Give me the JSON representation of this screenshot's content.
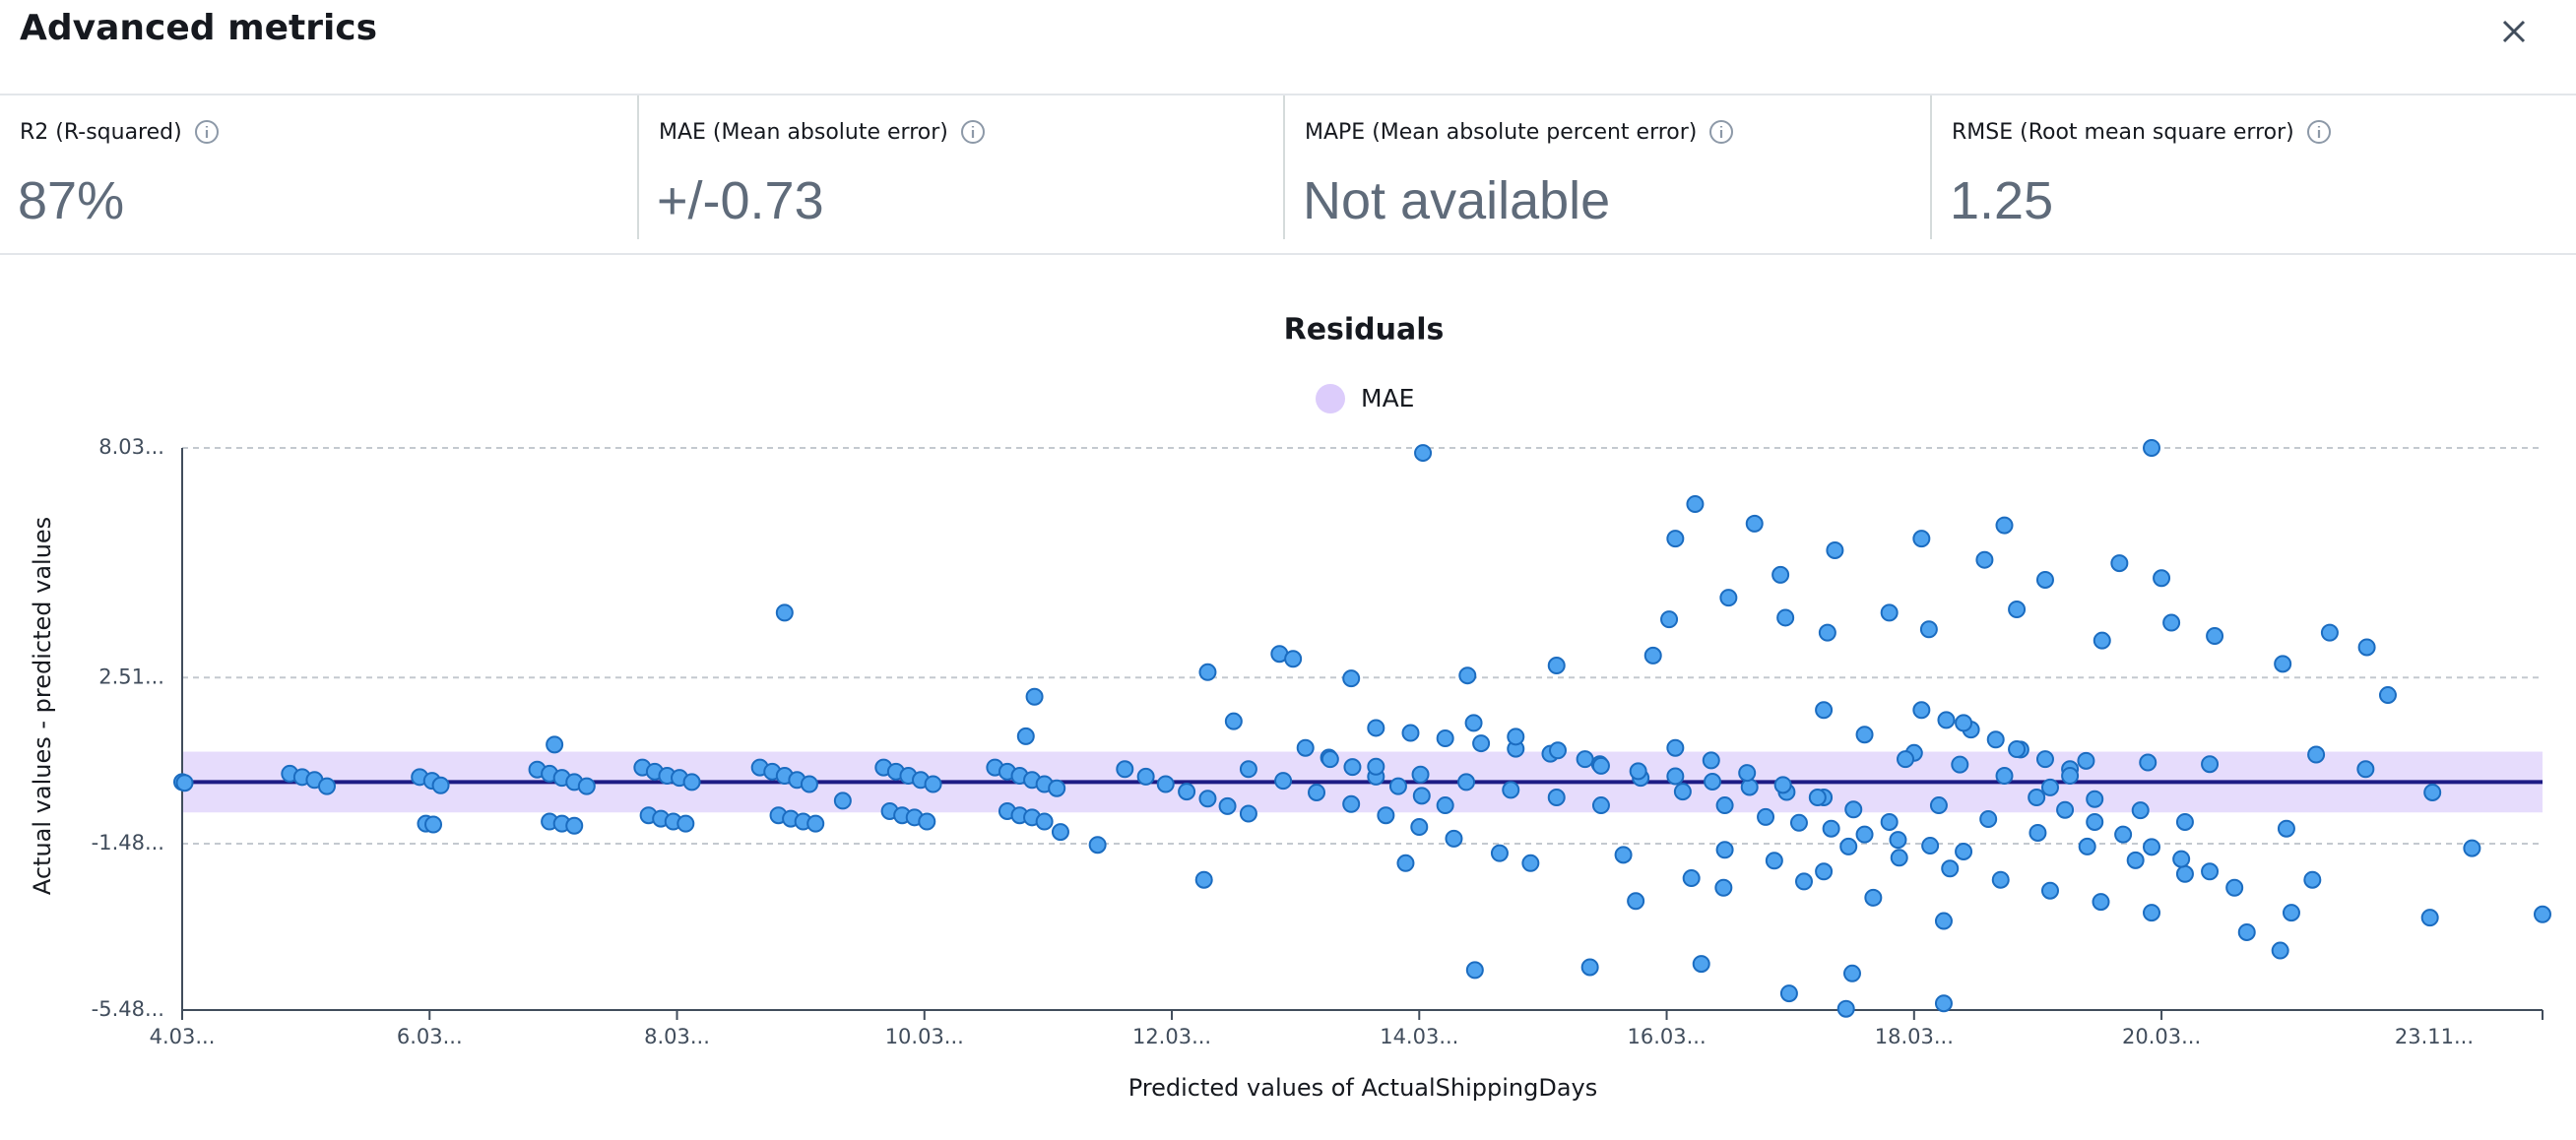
{
  "header": {
    "title": "Advanced metrics"
  },
  "metrics": [
    {
      "label": "R2 (R-squared)",
      "value": "87%"
    },
    {
      "label": "MAE (Mean absolute error)",
      "value": "+/-0.73"
    },
    {
      "label": "MAPE (Mean absolute percent error)",
      "value": "Not available"
    },
    {
      "label": "RMSE (Root mean square error)",
      "value": "1.25"
    }
  ],
  "chart_data": {
    "type": "scatter",
    "title": "Residuals",
    "x_label": "Predicted values of ActualShippingDays",
    "y_label": "Actual values - predicted values",
    "band": {
      "name": "MAE",
      "color": "#e6dcfc",
      "legend_color": "#dcccfb",
      "range": [
        -0.73,
        0.73
      ]
    },
    "zero_line": {
      "value": 0,
      "color": "#1d1b84"
    },
    "color": "#4fa3ef",
    "edge_color": "#1b6cc0",
    "xlim": [
      4.03,
      23.11
    ],
    "ylim": [
      -5.48,
      8.03
    ],
    "grid": true,
    "xticks": [
      {
        "value": 4.03,
        "label": "4.03..."
      },
      {
        "value": 6.03,
        "label": "6.03..."
      },
      {
        "value": 8.03,
        "label": "8.03..."
      },
      {
        "value": 10.03,
        "label": "10.03..."
      },
      {
        "value": 12.03,
        "label": "12.03..."
      },
      {
        "value": 14.03,
        "label": "14.03..."
      },
      {
        "value": 16.03,
        "label": "16.03..."
      },
      {
        "value": 18.03,
        "label": "18.03..."
      },
      {
        "value": 20.03,
        "label": "20.03..."
      },
      {
        "value": 23.11,
        "label": "23.11..."
      }
    ],
    "yticks": [
      {
        "value": 8.03,
        "label": "8.03..."
      },
      {
        "value": 2.51,
        "label": "2.51..."
      },
      {
        "value": -1.48,
        "label": "-1.48..."
      },
      {
        "value": -5.48,
        "label": "-5.48..."
      }
    ],
    "x": [
      4.03,
      4.05,
      4.9,
      5.0,
      5.1,
      5.2,
      5.95,
      6.05,
      6.12,
      6.0,
      6.06,
      6.9,
      7.0,
      7.1,
      7.2,
      7.3,
      7.0,
      7.1,
      7.2,
      7.04,
      7.75,
      7.85,
      7.95,
      8.05,
      8.15,
      7.8,
      7.9,
      8.0,
      8.1,
      8.9,
      8.7,
      8.8,
      8.9,
      9.0,
      9.1,
      8.85,
      8.95,
      9.05,
      9.15,
      9.37,
      9.7,
      9.8,
      9.9,
      10.0,
      10.1,
      9.75,
      9.85,
      9.95,
      10.05,
      10.6,
      10.7,
      10.8,
      10.9,
      11.0,
      11.1,
      10.7,
      10.8,
      10.9,
      11.0,
      11.65,
      11.82,
      11.98,
      12.15,
      12.32,
      12.48,
      12.65,
      12.65,
      12.93,
      13.2,
      13.48,
      13.76,
      14.03,
      14.31,
      13.11,
      13.3,
      13.49,
      13.68,
      13.86,
      14.05,
      14.24,
      13.31,
      13.68,
      14.04,
      14.41,
      14.77,
      15.14,
      15.5,
      13.68,
      13.96,
      14.24,
      14.53,
      14.81,
      15.09,
      15.37,
      14.47,
      14.81,
      15.15,
      15.49,
      15.82,
      16.16,
      16.5,
      15.5,
      15.8,
      16.1,
      16.4,
      16.7,
      17.0,
      17.3,
      16.1,
      16.39,
      16.68,
      16.97,
      17.25,
      17.54,
      17.83,
      16.83,
      17.1,
      17.36,
      17.63,
      17.9,
      18.16,
      18.43,
      17.5,
      17.91,
      18.32,
      18.73,
      19.13,
      19.54,
      19.95,
      18.03,
      18.4,
      18.76,
      19.13,
      19.49,
      19.86,
      20.22,
      18.23,
      18.63,
      19.03,
      19.43,
      19.82,
      20.22,
      20.62,
      19.02,
      19.25,
      19.49,
      19.72,
      19.95,
      20.19,
      20.42,
      18.09,
      18.29,
      18.49,
      18.69,
      18.89,
      19.09,
      19.29,
      19.42,
      19.92,
      20.42,
      16.5,
      16.9,
      17.3,
      17.3,
      17.63,
      17.96,
      18.43,
      18.86,
      19.29,
      14.06,
      19.95,
      16.26,
      16.1,
      16.74,
      17.39,
      16.95,
      16.53,
      16.05,
      16.99,
      18.09,
      18.76,
      18.6,
      19.09,
      19.69,
      20.03,
      17.83,
      18.86,
      17.33,
      18.15,
      19.55,
      20.11,
      20.46,
      21.01,
      21.39,
      21.69,
      21.86,
      15.92,
      15.14,
      14.42,
      13.48,
      12.9,
      13.01,
      12.32,
      10.92,
      10.85,
      12.53,
      21.28,
      21.68,
      22.22,
      22.54,
      22.2,
      23.11,
      21.04,
      21.25,
      21.08,
      20.99,
      20.72,
      18.27,
      17.7,
      17.14,
      16.49,
      16.23,
      15.78,
      15.68,
      14.68,
      14.93,
      13.92,
      12.29,
      11.43,
      11.13,
      14.48,
      15.41,
      16.31,
      17.02,
      17.48,
      17.53,
      18.27
    ],
    "y": [
      0,
      -0.02,
      0.2,
      0.12,
      0.05,
      -0.1,
      0.12,
      0.03,
      -0.08,
      -1.0,
      -1.02,
      0.3,
      0.2,
      0.1,
      0.0,
      -0.1,
      -0.95,
      -1.0,
      -1.05,
      0.9,
      0.35,
      0.25,
      0.15,
      0.1,
      0.0,
      -0.8,
      -0.88,
      -0.95,
      -1.0,
      4.07,
      0.35,
      0.25,
      0.15,
      0.05,
      -0.05,
      -0.8,
      -0.88,
      -0.95,
      -1.0,
      -0.45,
      0.35,
      0.25,
      0.15,
      0.05,
      -0.05,
      -0.7,
      -0.8,
      -0.85,
      -0.95,
      0.35,
      0.25,
      0.15,
      0.05,
      -0.05,
      -0.15,
      -0.7,
      -0.8,
      -0.85,
      -0.95,
      0.31,
      0.13,
      -0.05,
      -0.23,
      -0.4,
      -0.58,
      -0.76,
      0.31,
      0.03,
      -0.25,
      -0.53,
      -0.8,
      -1.08,
      -1.36,
      0.82,
      0.59,
      0.36,
      0.13,
      -0.1,
      -0.33,
      -0.56,
      0.55,
      0.37,
      0.18,
      0.0,
      -0.19,
      -0.37,
      -0.56,
      1.3,
      1.18,
      1.05,
      0.93,
      0.8,
      0.68,
      0.55,
      1.42,
      1.09,
      0.76,
      0.43,
      0.1,
      -0.23,
      -0.56,
      0.39,
      0.26,
      0.14,
      0.01,
      -0.12,
      -0.24,
      -0.37,
      0.82,
      0.52,
      0.22,
      -0.07,
      -0.37,
      -0.66,
      -0.96,
      -0.84,
      -0.98,
      -1.12,
      -1.26,
      -1.39,
      -1.53,
      -1.67,
      -1.55,
      -1.82,
      -2.08,
      -2.35,
      -2.61,
      -2.88,
      -3.14,
      0.7,
      0.42,
      0.15,
      -0.13,
      -0.41,
      -0.68,
      -0.96,
      -0.56,
      -0.89,
      -1.22,
      -1.55,
      -1.88,
      -2.21,
      -2.54,
      -0.37,
      -0.67,
      -0.96,
      -1.26,
      -1.56,
      -1.85,
      -2.15,
      1.73,
      1.49,
      1.26,
      1.02,
      0.78,
      0.55,
      0.31,
      0.51,
      0.47,
      0.43,
      -1.63,
      -1.89,
      -2.15,
      1.73,
      1.14,
      0.55,
      1.42,
      0.79,
      0.15,
      7.91,
      8.03,
      6.68,
      5.85,
      6.21,
      5.57,
      4.98,
      4.43,
      3.91,
      3.95,
      5.85,
      6.17,
      5.34,
      4.86,
      5.26,
      4.9,
      4.07,
      4.15,
      3.59,
      3.67,
      3.4,
      3.83,
      3.51,
      2.84,
      3.59,
      3.24,
      2.09,
      3.04,
      2.8,
      2.56,
      2.49,
      3.08,
      2.96,
      2.64,
      2.05,
      1.1,
      1.46,
      0.66,
      0.31,
      -0.25,
      -1.59,
      -3.26,
      -3.18,
      -1.12,
      -2.35,
      -3.14,
      -4.05,
      -3.61,
      -3.34,
      -2.78,
      -2.39,
      -2.54,
      -2.31,
      -2.86,
      -1.75,
      -1.71,
      -1.95,
      -1.95,
      -2.35,
      -1.51,
      -1.2,
      -4.52,
      -4.45,
      -4.37,
      -5.08,
      -5.45,
      -4.6,
      -5.32
    ]
  }
}
